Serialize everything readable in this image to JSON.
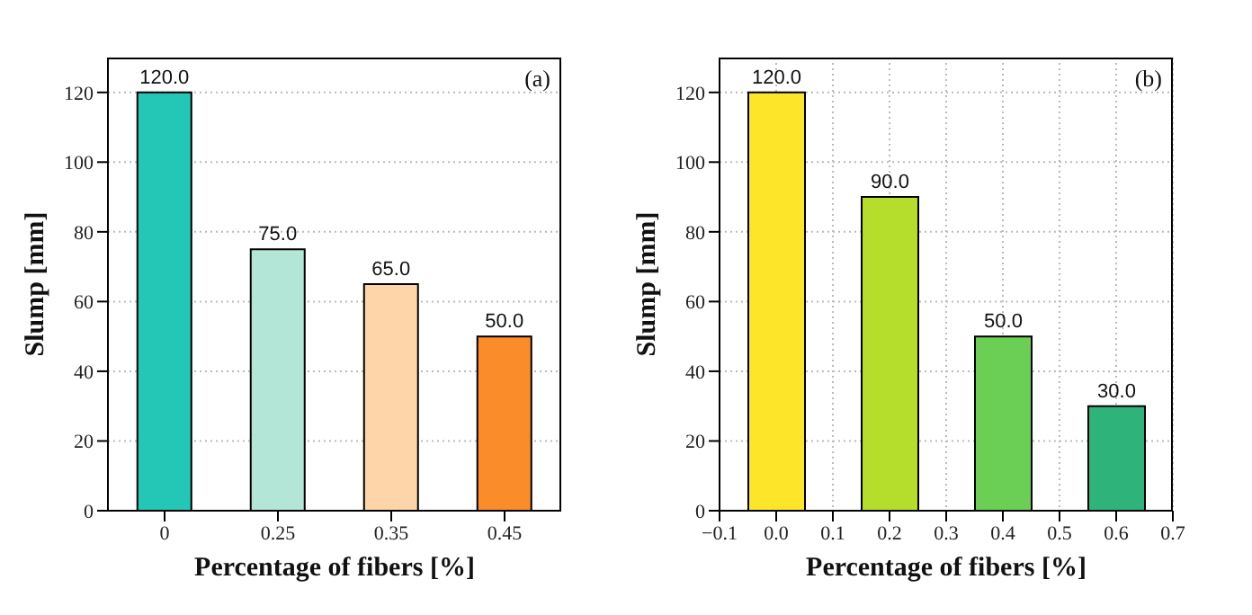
{
  "chart_data": [
    {
      "type": "bar",
      "categories": [
        "0",
        "0.25",
        "0.35",
        "0.45"
      ],
      "values": [
        120,
        75,
        65,
        50
      ],
      "colors": [
        "#24c7b5",
        "#b3e6d7",
        "#fdd5a8",
        "#fb8c2a"
      ],
      "value_labels": [
        "120.0",
        "75.0",
        "65.0",
        "50.0"
      ],
      "xlabel": "Percentage of fibers [%]",
      "ylabel": "Slump [mm]",
      "ylim": [
        0,
        130
      ],
      "yticks": [
        0,
        20,
        40,
        60,
        80,
        100,
        120
      ],
      "grid": "y",
      "annotations": [
        "(a)"
      ]
    },
    {
      "type": "bar",
      "x": [
        0,
        0.2,
        0.4,
        0.6
      ],
      "values": [
        120,
        90,
        50,
        30
      ],
      "colors": [
        "#fde52a",
        "#b5dd2b",
        "#6ccf55",
        "#2eb47a"
      ],
      "value_labels": [
        "120.0",
        "90.0",
        "50.0",
        "30.0"
      ],
      "xlabel": "Percentage of fibers [%]",
      "ylabel": "Slump [mm]",
      "xlim": [
        -0.1,
        0.7
      ],
      "xticks": [
        {
          "value": -0.1,
          "label": "−0.1"
        },
        {
          "value": 0,
          "label": "0.0"
        },
        0.1,
        0.2,
        0.3,
        0.4,
        0.5,
        0.6,
        0.7
      ],
      "ylim": [
        0,
        130
      ],
      "yticks": [
        0,
        20,
        40,
        60,
        80,
        100,
        120
      ],
      "grid": true,
      "annotations": [
        "(b)"
      ]
    }
  ]
}
